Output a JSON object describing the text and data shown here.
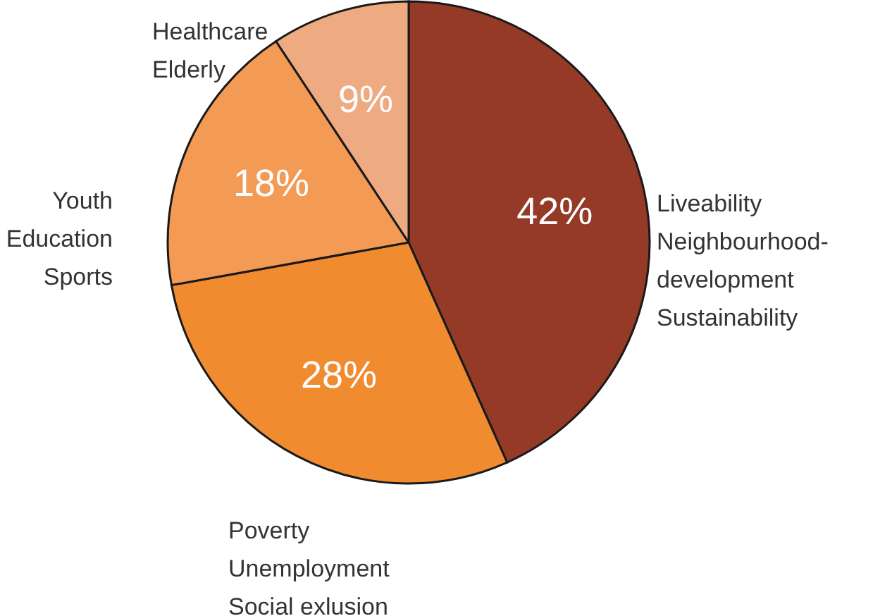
{
  "chart_data": {
    "type": "pie",
    "categories": [
      "Liveability\nNeighbourhood-\ndevelopment\nSustainability",
      "Poverty\nUnemployment\nSocial exlusion",
      "Youth\nEducation\nSports",
      "Healthcare\nElderly"
    ],
    "values": [
      42,
      28,
      18,
      9
    ],
    "value_labels": [
      "42%",
      "28%",
      "18%",
      "9%"
    ],
    "colors": [
      "#943a27",
      "#f18b2f",
      "#f39a55",
      "#eeaa80"
    ]
  }
}
